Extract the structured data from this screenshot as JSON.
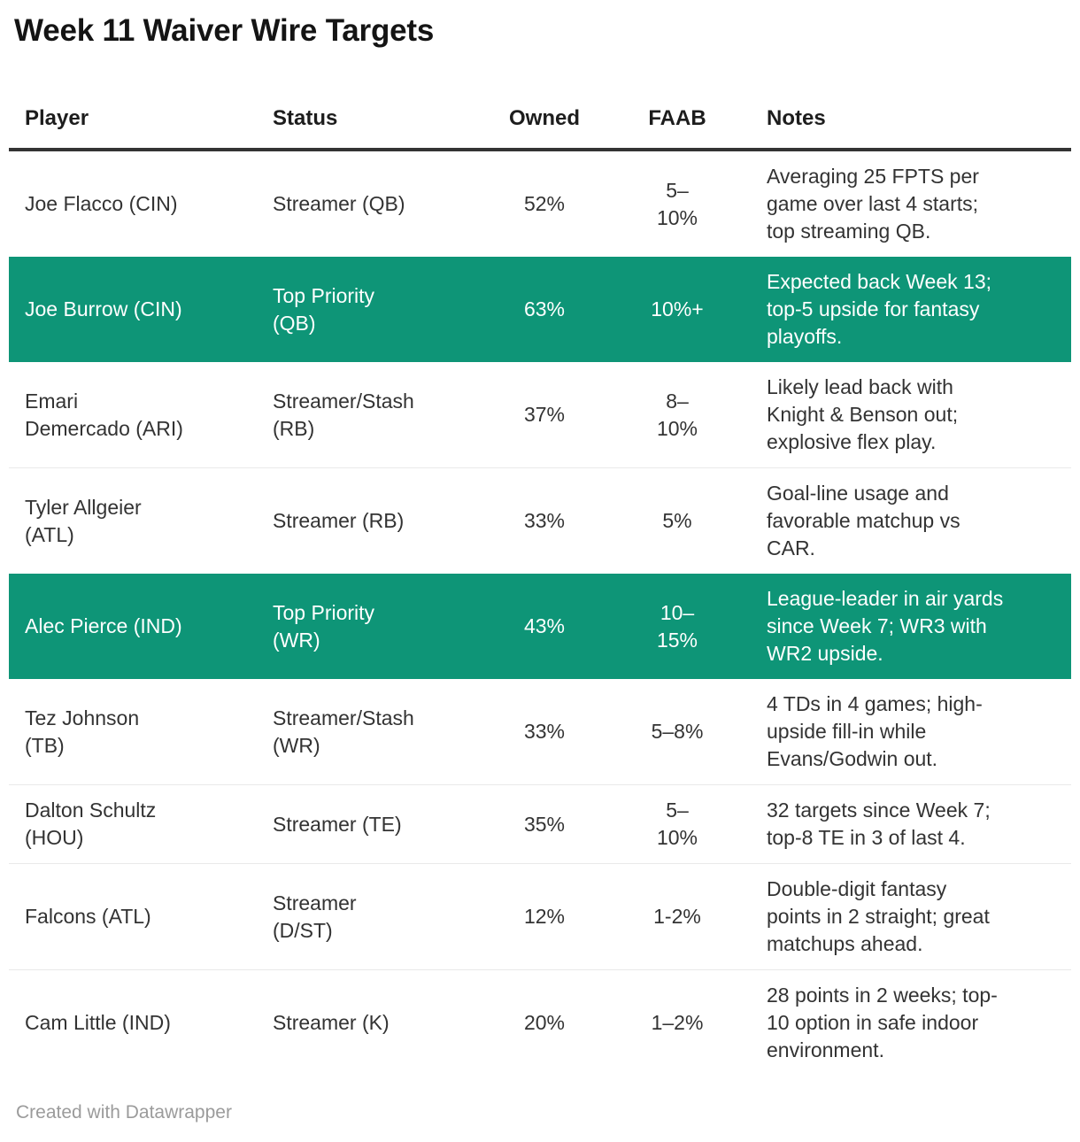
{
  "title": "Week 11 Waiver Wire Targets",
  "colors": {
    "highlight_row_background": "#0E9577",
    "highlight_row_text": "#FFFFFF",
    "header_rule": "#333333",
    "row_divider": "#E9E9E9",
    "body_text": "#333333",
    "attribution_text": "#9B9B9B"
  },
  "table": {
    "columns": [
      "Player",
      "Status",
      "Owned",
      "FAAB",
      "Notes"
    ],
    "rows": [
      {
        "player": "Joe Flacco (CIN)",
        "status": "Streamer (QB)",
        "owned": "52%",
        "faab": "5–\n10%",
        "notes": "Averaging 25 FPTS per\ngame over last 4 starts;\ntop streaming QB.",
        "highlighted": false
      },
      {
        "player": "Joe Burrow (CIN)",
        "status": "Top Priority\n(QB)",
        "owned": "63%",
        "faab": "10%+",
        "notes": "Expected back Week 13;\ntop-5 upside for fantasy\nplayoffs.",
        "highlighted": true
      },
      {
        "player": "Emari\nDemercado (ARI)",
        "status": "Streamer/Stash\n(RB)",
        "owned": "37%",
        "faab": "8–\n10%",
        "notes": "Likely lead back with\nKnight & Benson out;\nexplosive flex play.",
        "highlighted": false
      },
      {
        "player": "Tyler Allgeier\n(ATL)",
        "status": "Streamer (RB)",
        "owned": "33%",
        "faab": "5%",
        "notes": "Goal-line usage and\nfavorable matchup vs\nCAR.",
        "highlighted": false
      },
      {
        "player": "Alec Pierce (IND)",
        "status": "Top Priority\n(WR)",
        "owned": "43%",
        "faab": "10–\n15%",
        "notes": "League-leader in air yards\nsince Week 7; WR3 with\nWR2 upside.",
        "highlighted": true
      },
      {
        "player": "Tez Johnson\n(TB)",
        "status": "Streamer/Stash\n(WR)",
        "owned": "33%",
        "faab": "5–8%",
        "notes": "4 TDs in 4 games; high-\nupside fill-in while\nEvans/Godwin out.",
        "highlighted": false
      },
      {
        "player": "Dalton Schultz\n(HOU)",
        "status": "Streamer (TE)",
        "owned": "35%",
        "faab": "5–\n10%",
        "notes": "32 targets since Week 7;\ntop-8 TE in 3 of last 4.",
        "highlighted": false
      },
      {
        "player": "Falcons (ATL)",
        "status": "Streamer\n(D/ST)",
        "owned": "12%",
        "faab": "1-2%",
        "notes": "Double-digit fantasy\npoints in 2 straight; great\nmatchups ahead.",
        "highlighted": false
      },
      {
        "player": "Cam Little (IND)",
        "status": "Streamer (K)",
        "owned": "20%",
        "faab": "1–2%",
        "notes": "28 points in 2 weeks; top-\n10 option in safe indoor\nenvironment.",
        "highlighted": false
      }
    ]
  },
  "footer": {
    "attribution": "Created with Datawrapper"
  },
  "chart_data": {
    "type": "table",
    "title": "Week 11 Waiver Wire Targets",
    "columns": [
      "Player",
      "Status",
      "Owned",
      "FAAB",
      "Notes"
    ],
    "rows": [
      [
        "Joe Flacco (CIN)",
        "Streamer (QB)",
        "52%",
        "5–10%",
        "Averaging 25 FPTS per game over last 4 starts; top streaming QB."
      ],
      [
        "Joe Burrow (CIN)",
        "Top Priority (QB)",
        "63%",
        "10%+",
        "Expected back Week 13; top-5 upside for fantasy playoffs."
      ],
      [
        "Emari Demercado (ARI)",
        "Streamer/Stash (RB)",
        "37%",
        "8–10%",
        "Likely lead back with Knight & Benson out; explosive flex play."
      ],
      [
        "Tyler Allgeier (ATL)",
        "Streamer (RB)",
        "33%",
        "5%",
        "Goal-line usage and favorable matchup vs CAR."
      ],
      [
        "Alec Pierce (IND)",
        "Top Priority (WR)",
        "43%",
        "10–15%",
        "League-leader in air yards since Week 7; WR3 with WR2 upside."
      ],
      [
        "Tez Johnson (TB)",
        "Streamer/Stash (WR)",
        "33%",
        "5–8%",
        "4 TDs in 4 games; high-upside fill-in while Evans/Godwin out."
      ],
      [
        "Dalton Schultz (HOU)",
        "Streamer (TE)",
        "35%",
        "5–10%",
        "32 targets since Week 7; top-8 TE in 3 of last 4."
      ],
      [
        "Falcons (ATL)",
        "Streamer (D/ST)",
        "12%",
        "1-2%",
        "Double-digit fantasy points in 2 straight; great matchups ahead."
      ],
      [
        "Cam Little (IND)",
        "Streamer (K)",
        "20%",
        "1–2%",
        "28 points in 2 weeks; top-10 option in safe indoor environment."
      ]
    ],
    "highlighted_rows": [
      "Joe Burrow (CIN)",
      "Alec Pierce (IND)"
    ],
    "attribution": "Created with Datawrapper"
  }
}
